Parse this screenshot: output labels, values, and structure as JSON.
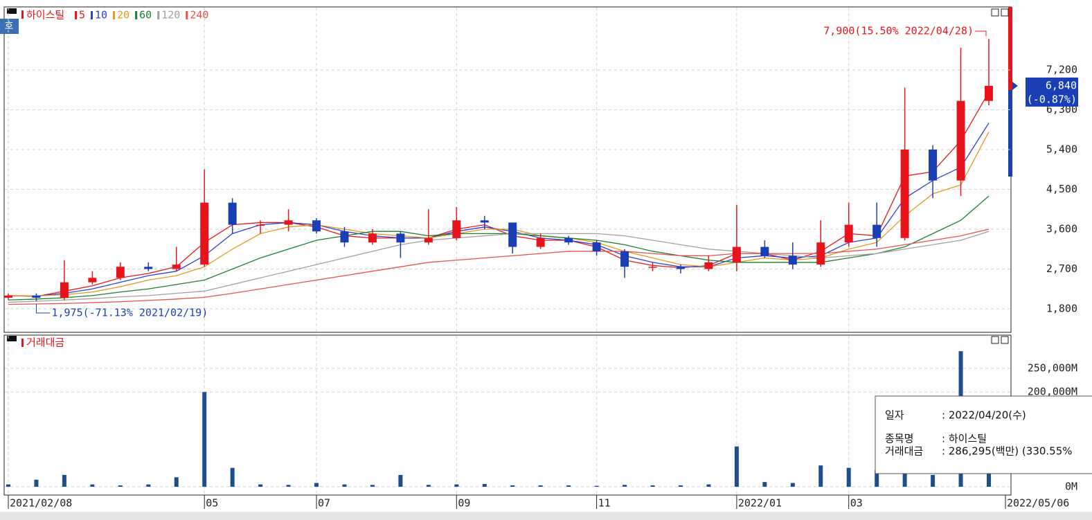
{
  "chart_data": [
    {
      "type": "candlestick",
      "title": "하이스틸",
      "corner_label": "호",
      "up_color": "#e8141c",
      "down_color": "#1a3fb5",
      "open": [
        2050,
        2100,
        2050,
        2400,
        2500,
        2750,
        2700,
        2800,
        4200,
        3700,
        3700,
        3800,
        3550,
        3300,
        3500,
        3300,
        3400,
        3800,
        3750,
        3200,
        3400,
        3300,
        3100,
        2750,
        2750,
        2700,
        2850,
        3200,
        3000,
        2800,
        3300,
        3700,
        3400,
        5400,
        4700,
        6500
      ],
      "high": [
        2150,
        2150,
        2900,
        2650,
        2850,
        2850,
        3200,
        4950,
        4300,
        3800,
        4050,
        3850,
        3650,
        3600,
        3550,
        4050,
        4100,
        3900,
        3750,
        3500,
        3450,
        3350,
        3150,
        2850,
        2800,
        3000,
        4150,
        3350,
        3300,
        3800,
        4200,
        4200,
        6800,
        5500,
        7700,
        7900
      ],
      "low": [
        2000,
        1975,
        2000,
        2350,
        2450,
        2650,
        2650,
        2750,
        3500,
        3500,
        3550,
        3500,
        3200,
        3250,
        2950,
        3250,
        3350,
        3600,
        3050,
        3150,
        3250,
        3000,
        2500,
        2650,
        2600,
        2650,
        2650,
        2950,
        2700,
        2750,
        3200,
        3200,
        3350,
        4300,
        4350,
        6400
      ],
      "close": [
        2100,
        2050,
        2400,
        2500,
        2750,
        2700,
        2800,
        4200,
        3700,
        3700,
        3800,
        3550,
        3300,
        3500,
        3300,
        3400,
        3800,
        3750,
        3200,
        3400,
        3300,
        3100,
        2750,
        2750,
        2700,
        2850,
        3200,
        3000,
        2800,
        3300,
        3700,
        3400,
        5400,
        4700,
        6500,
        6840
      ],
      "series": [
        {
          "name": "5",
          "color": "#e8141c",
          "values": [
            2100,
            2080,
            2200,
            2320,
            2500,
            2600,
            2750,
            3300,
            3700,
            3750,
            3750,
            3650,
            3450,
            3400,
            3400,
            3400,
            3600,
            3700,
            3450,
            3350,
            3350,
            3200,
            2900,
            2780,
            2730,
            2780,
            3050,
            3050,
            2900,
            3100,
            3500,
            3450,
            4800,
            4900,
            5600,
            6700
          ]
        },
        {
          "name": "10",
          "color": "#2c3fd6",
          "values": [
            2100,
            2090,
            2150,
            2250,
            2400,
            2550,
            2650,
            3000,
            3500,
            3700,
            3750,
            3700,
            3550,
            3450,
            3400,
            3400,
            3550,
            3650,
            3550,
            3400,
            3350,
            3250,
            3000,
            2850,
            2750,
            2750,
            2950,
            3000,
            2950,
            3000,
            3300,
            3400,
            4300,
            4700,
            5000,
            6000
          ]
        },
        {
          "name": "20",
          "color": "#e09a1c",
          "values": [
            2100,
            2090,
            2120,
            2180,
            2300,
            2450,
            2550,
            2750,
            3150,
            3500,
            3650,
            3700,
            3600,
            3500,
            3450,
            3400,
            3500,
            3600,
            3600,
            3450,
            3400,
            3300,
            3100,
            2950,
            2800,
            2750,
            2850,
            2950,
            2900,
            2950,
            3150,
            3300,
            3900,
            4400,
            4600,
            5800
          ]
        },
        {
          "name": "60",
          "color": "#1e7d32",
          "values": [
            2000,
            2020,
            2050,
            2100,
            2180,
            2250,
            2350,
            2450,
            2700,
            2950,
            3150,
            3350,
            3450,
            3550,
            3550,
            3450,
            3500,
            3500,
            3500,
            3450,
            3400,
            3350,
            3250,
            3100,
            3000,
            2900,
            2850,
            2850,
            2850,
            2850,
            2950,
            3050,
            3200,
            3500,
            3800,
            4350
          ]
        },
        {
          "name": "120",
          "color": "#a0a0a0",
          "values": [
            1950,
            1970,
            2000,
            2030,
            2070,
            2100,
            2150,
            2200,
            2350,
            2500,
            2650,
            2800,
            2950,
            3100,
            3250,
            3350,
            3400,
            3450,
            3500,
            3500,
            3500,
            3500,
            3450,
            3350,
            3250,
            3150,
            3100,
            3050,
            3000,
            2950,
            3000,
            3050,
            3150,
            3250,
            3350,
            3550
          ]
        },
        {
          "name": "240",
          "color": "#e85050",
          "values": [
            1900,
            1910,
            1920,
            1940,
            1960,
            1990,
            2020,
            2060,
            2150,
            2250,
            2350,
            2450,
            2550,
            2650,
            2750,
            2850,
            2900,
            2950,
            3000,
            3050,
            3100,
            3100,
            3100,
            3050,
            3000,
            3000,
            3050,
            3050,
            3050,
            3050,
            3100,
            3150,
            3250,
            3350,
            3450,
            3600
          ]
        }
      ],
      "ylim": [
        1268,
        8624
      ],
      "yticks": [
        {
          "value": 1800,
          "label": "1,800"
        },
        {
          "value": 2700,
          "label": "2,700"
        },
        {
          "value": 3600,
          "label": "3,600"
        },
        {
          "value": 4500,
          "label": "4,500"
        },
        {
          "value": 5400,
          "label": "5,400"
        },
        {
          "value": 6300,
          "label": "6,300"
        },
        {
          "value": 7200,
          "label": "7,200"
        }
      ],
      "grid": true,
      "annotations": [
        "7,900(15.50% 2022/04/28)",
        "1,975(-71.13% 2021/02/19)"
      ],
      "last_label": "6,840",
      "last_change": "(-0.87%)"
    },
    {
      "type": "bar",
      "title": "거래대금",
      "color": "#1f4e8c",
      "categories": [
        "2021/02/08",
        null,
        null,
        null,
        null,
        null,
        null,
        "05",
        null,
        null,
        null,
        "07",
        null,
        null,
        null,
        null,
        "09",
        null,
        null,
        null,
        null,
        "11",
        null,
        null,
        null,
        null,
        "2022/01",
        null,
        null,
        null,
        "03",
        null,
        null,
        null,
        null,
        "2022/05/06"
      ],
      "values": [
        5000,
        15000,
        25000,
        5000,
        3000,
        5000,
        20000,
        200000,
        40000,
        5000,
        4000,
        8000,
        5000,
        4000,
        25000,
        4000,
        5000,
        6000,
        3000,
        3000,
        3000,
        2000,
        4000,
        3000,
        3000,
        5000,
        85000,
        10000,
        8000,
        45000,
        40000,
        35000,
        60000,
        25000,
        286295,
        50000
      ],
      "ylim": [
        -17544,
        320175
      ],
      "yticks": [
        {
          "value": 0,
          "label": "0M"
        },
        {
          "value": 200000,
          "label": "200,000M"
        },
        {
          "value": 250000,
          "label": "250,000M"
        }
      ],
      "grid": true
    }
  ],
  "tooltip": {
    "rows": [
      [
        "일자",
        ": 2022/04/20(수)"
      ],
      [
        "종목명",
        ": 하이스틸"
      ],
      [
        "거래대금",
        ": 286,295(백만) (330.55%"
      ]
    ]
  }
}
